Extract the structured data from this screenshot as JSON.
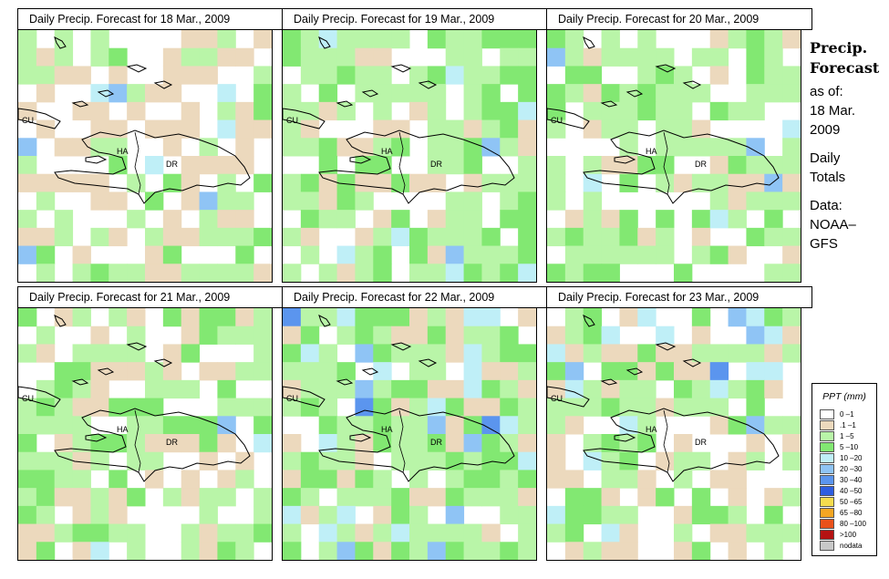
{
  "panels": [
    {
      "title": "Daily Precip. Forecast for  18 Mar., 2009"
    },
    {
      "title": "Daily Precip. Forecast for  19 Mar., 2009"
    },
    {
      "title": "Daily Precip. Forecast for  20 Mar., 2009"
    },
    {
      "title": "Daily Precip. Forecast for  21 Mar., 2009"
    },
    {
      "title": "Daily Precip. Forecast for  22 Mar., 2009"
    },
    {
      "title": "Daily Precip. Forecast for  23 Mar., 2009"
    }
  ],
  "map_labels": {
    "cuba": "CU",
    "haiti": "HA",
    "dominican_republic": "DR"
  },
  "side_text": {
    "heading_line1": "Precip.",
    "heading_line2": "Forecast",
    "as_of": "as of:",
    "date_line1": "18 Mar.",
    "date_line2": "2009",
    "totals_line1": "Daily",
    "totals_line2": "Totals",
    "data_line1": "Data:",
    "data_line2": "NOAA–",
    "data_line3": "GFS"
  },
  "legend": {
    "title": "PPT (mm)",
    "classes": [
      {
        "label": "0 –1",
        "color": "#ffffff"
      },
      {
        "label": ".1 –1",
        "color": "#ecd9bd"
      },
      {
        "label": "1 –5",
        "color": "#b9f5a8"
      },
      {
        "label": "5 –10",
        "color": "#82e872"
      },
      {
        "label": "10 –20",
        "color": "#bfeff7"
      },
      {
        "label": "20 –30",
        "color": "#8fc4f5"
      },
      {
        "label": "30 –40",
        "color": "#5b95ee"
      },
      {
        "label": "40 –50",
        "color": "#2f5ee0"
      },
      {
        "label": "50 –65",
        "color": "#f6dc4e"
      },
      {
        "label": "65 –80",
        "color": "#f5a623"
      },
      {
        "label": "80 –100",
        "color": "#e9511a"
      },
      {
        "label": ">100",
        "color": "#b51212"
      },
      {
        "label": "nodata",
        "color": "#c8c8c8"
      }
    ]
  }
}
